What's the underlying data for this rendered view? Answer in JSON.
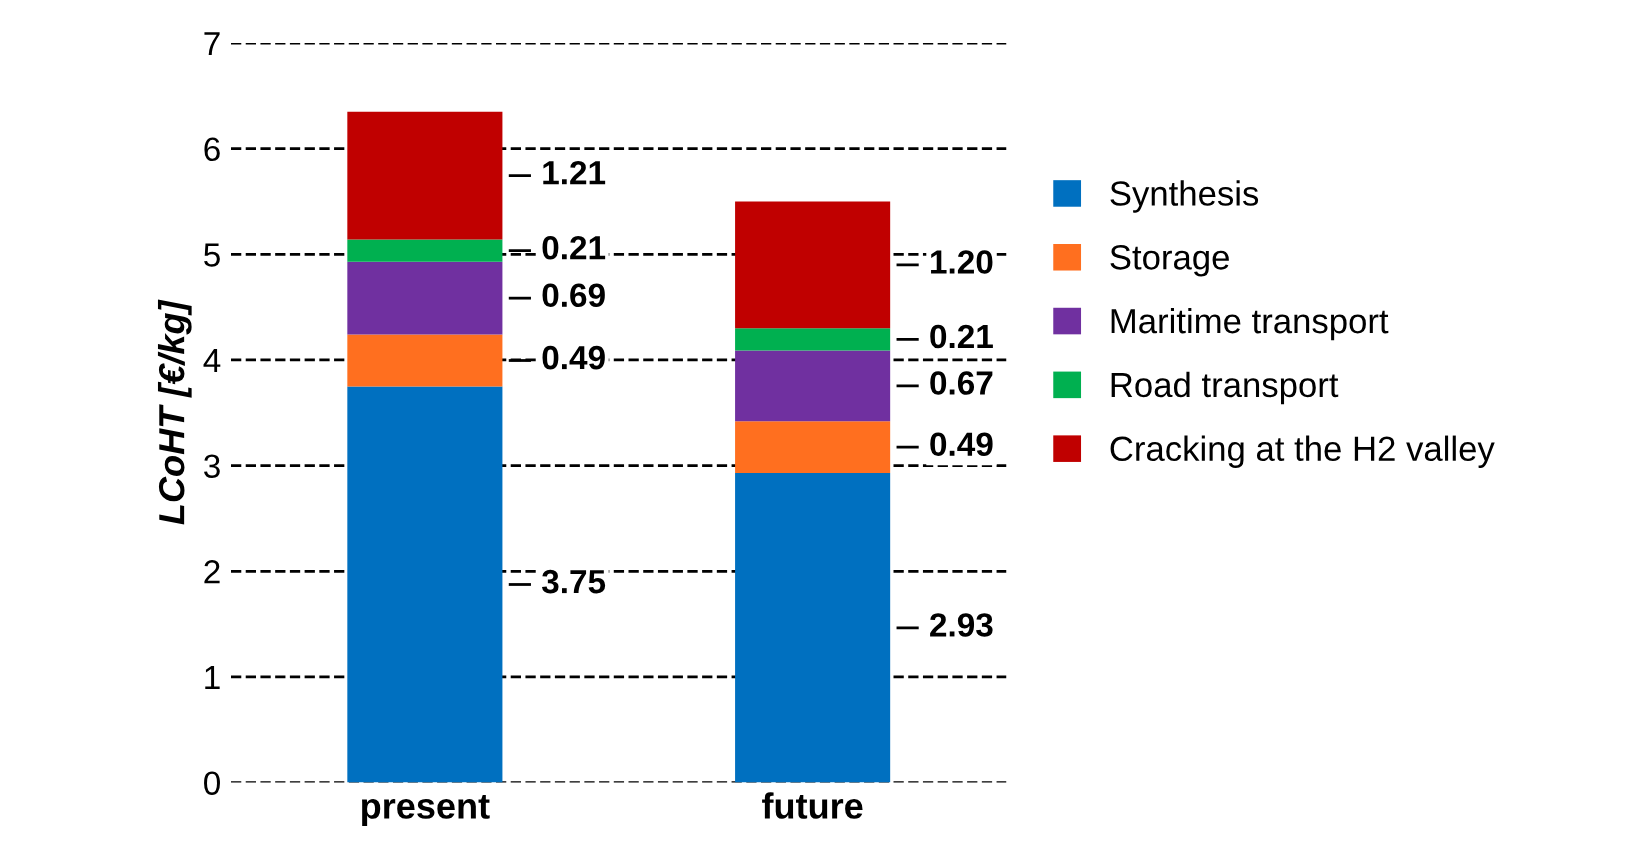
{
  "chart_data": {
    "type": "bar",
    "stacked": true,
    "ylabel": "LCoHT [€/kg]",
    "categories": [
      "present",
      "future"
    ],
    "series": [
      {
        "name": "Synthesis",
        "color": "#0070c0",
        "values": [
          3.75,
          2.93
        ],
        "value_labels": [
          "3.75",
          "2.93"
        ]
      },
      {
        "name": "Storage",
        "color": "#ff6f1f",
        "values": [
          0.49,
          0.49
        ],
        "value_labels": [
          "0.49",
          "0.49"
        ]
      },
      {
        "name": "Maritime transport",
        "color": "#7030a0",
        "values": [
          0.69,
          0.67
        ],
        "value_labels": [
          "0.69",
          "0.67"
        ]
      },
      {
        "name": "Road transport",
        "color": "#00b050",
        "values": [
          0.21,
          0.21
        ],
        "value_labels": [
          "0.21",
          "0.21"
        ]
      },
      {
        "name": "Cracking at the H2 valley",
        "color": "#c00000",
        "values": [
          1.21,
          1.2
        ],
        "value_labels": [
          "1.21",
          "1.20"
        ]
      }
    ],
    "ylim": [
      0,
      7
    ],
    "yticks": [
      0,
      1,
      2,
      3,
      4,
      5,
      6,
      7
    ],
    "grid": "y",
    "legend": "right"
  }
}
